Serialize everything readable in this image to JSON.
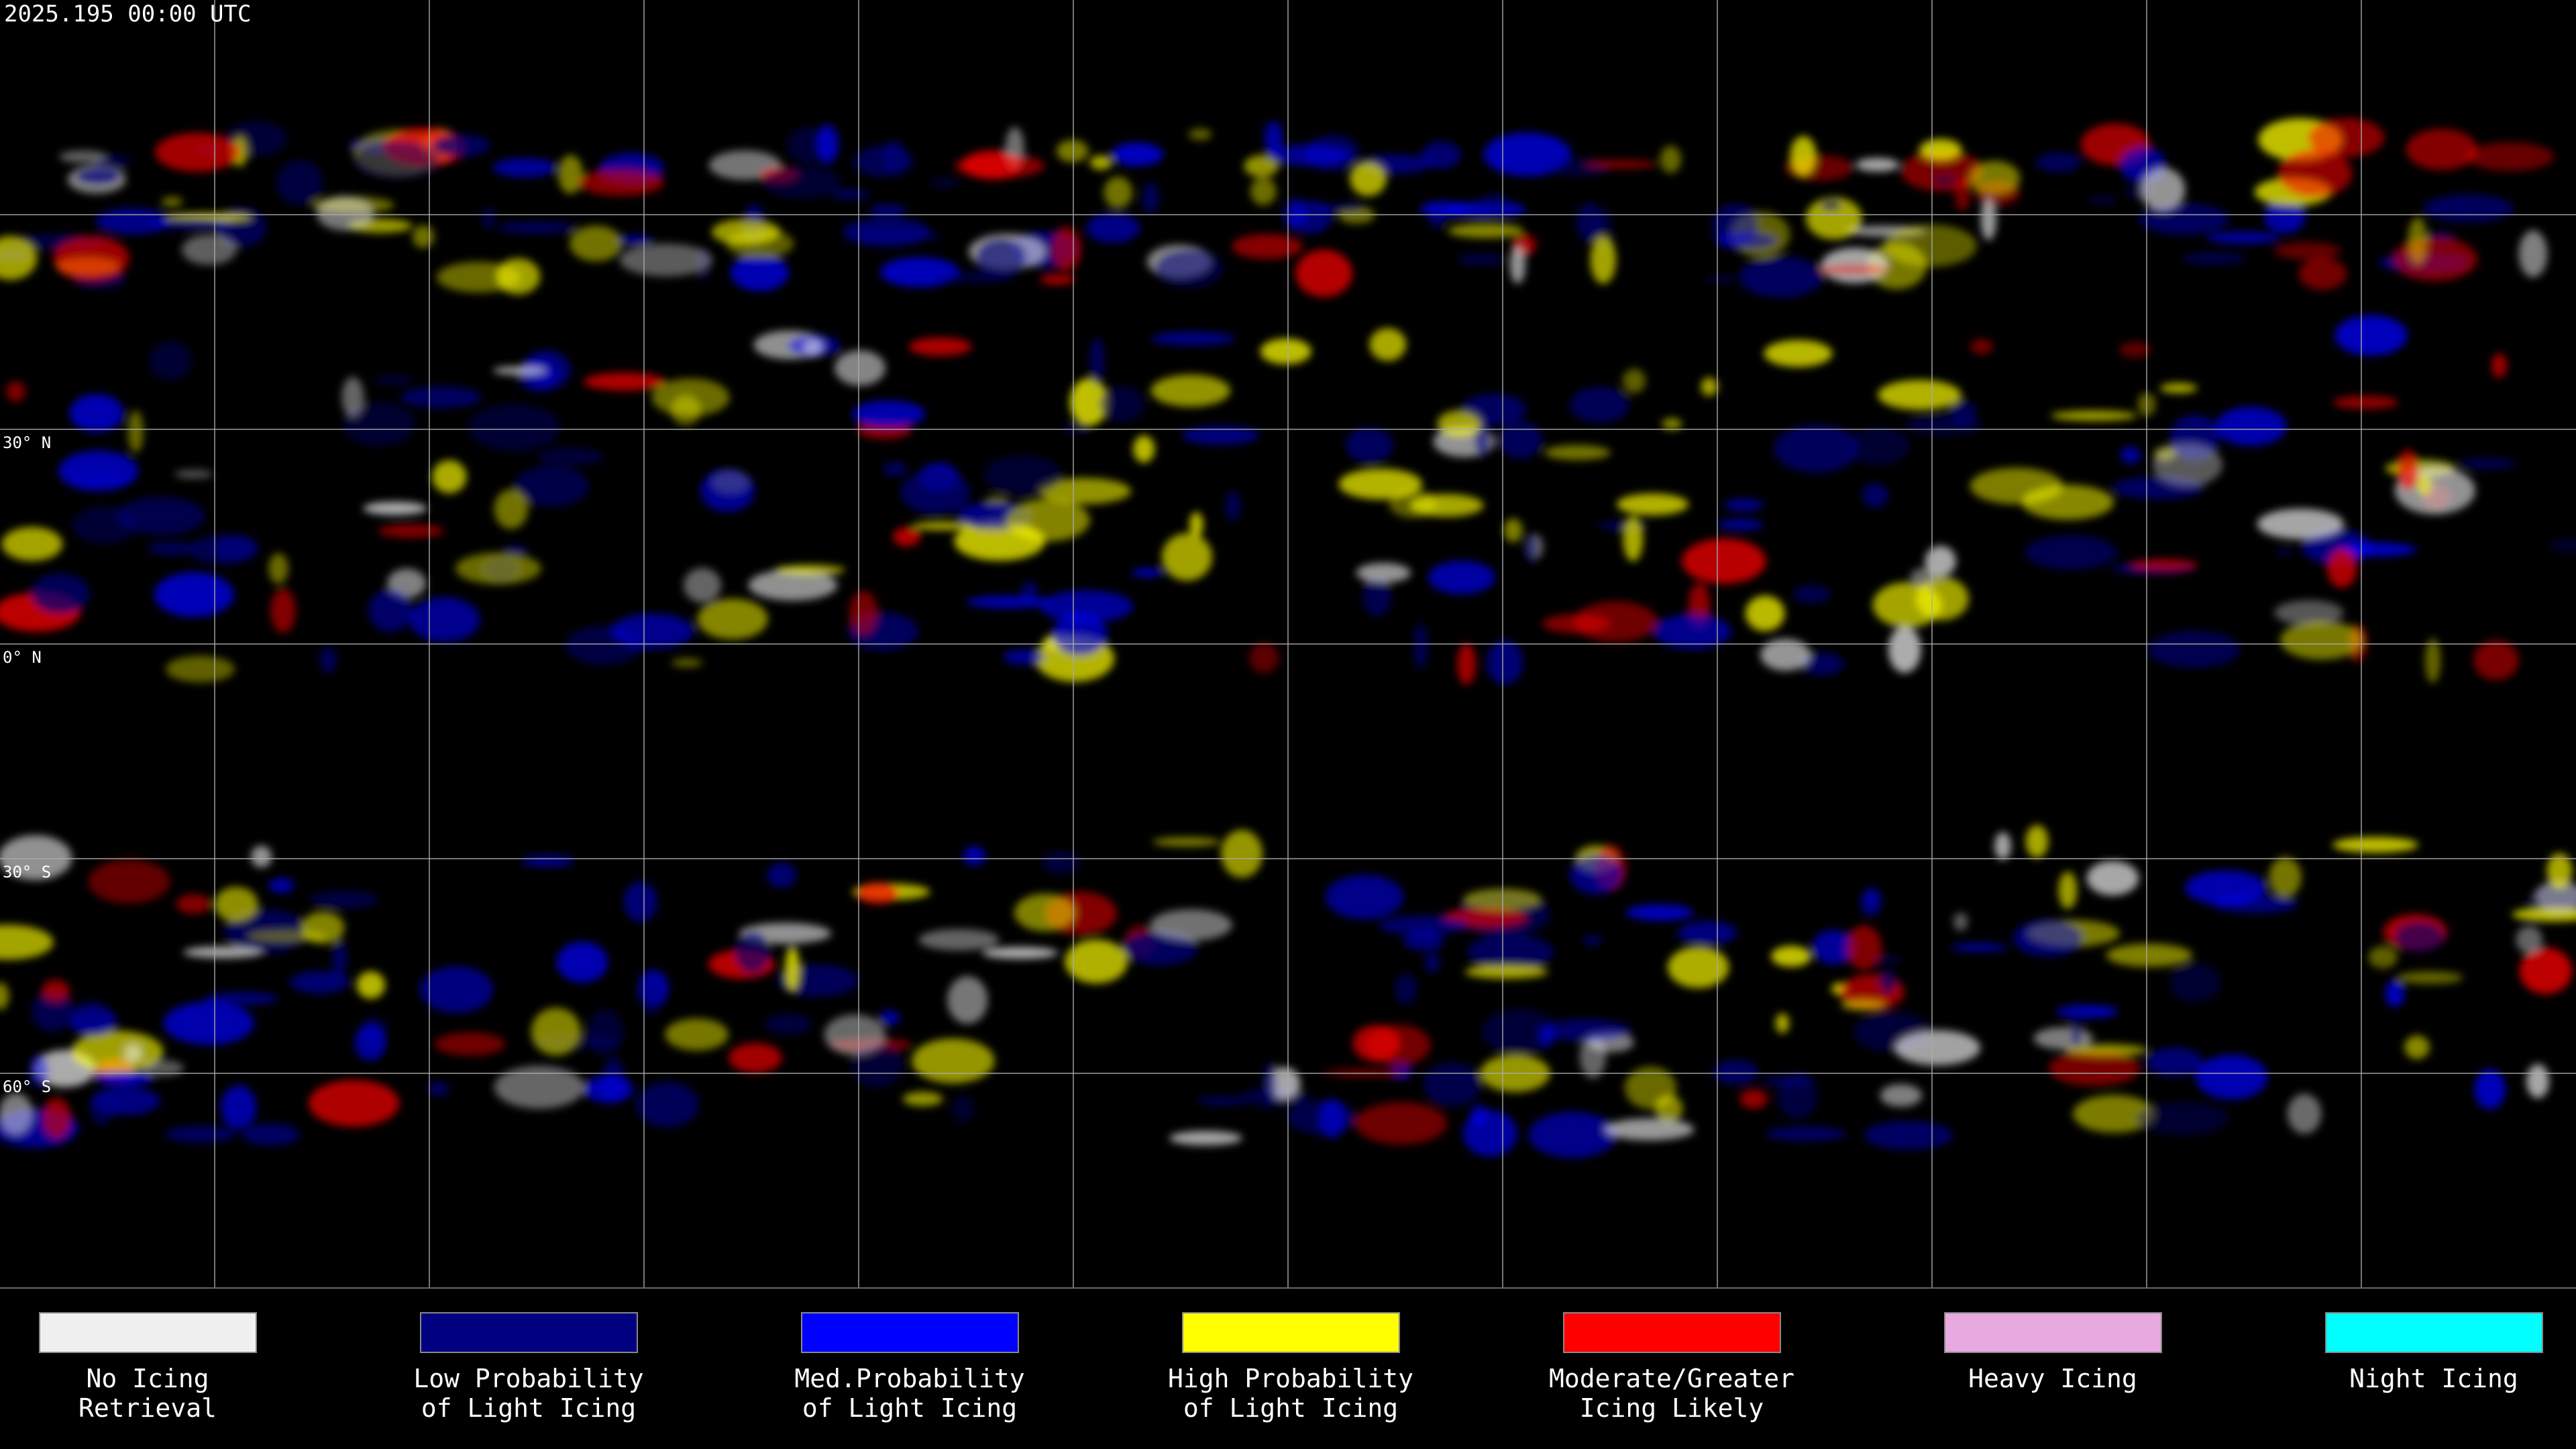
{
  "header": {
    "title": "2025.195 00:00 UTC"
  },
  "map": {
    "latitude_labels": [
      "30° N",
      "0° N",
      "30° S",
      "60° S"
    ]
  },
  "legend": {
    "items": [
      {
        "color": "#f0f0f0",
        "label": [
          "No Icing",
          "Retrieval"
        ]
      },
      {
        "color": "#000080",
        "label": [
          "Low Probability",
          "of Light Icing"
        ]
      },
      {
        "color": "#0000ff",
        "label": [
          "Med.Probability",
          "of Light Icing"
        ]
      },
      {
        "color": "#ffff00",
        "label": [
          "High Probability",
          "of Light Icing"
        ]
      },
      {
        "color": "#ff0000",
        "label": [
          "Moderate/Greater",
          "Icing Likely"
        ]
      },
      {
        "color": "#e8a8e0",
        "label": [
          "Heavy Icing"
        ]
      },
      {
        "color": "#00ffff",
        "label": [
          "Night Icing"
        ]
      }
    ]
  }
}
